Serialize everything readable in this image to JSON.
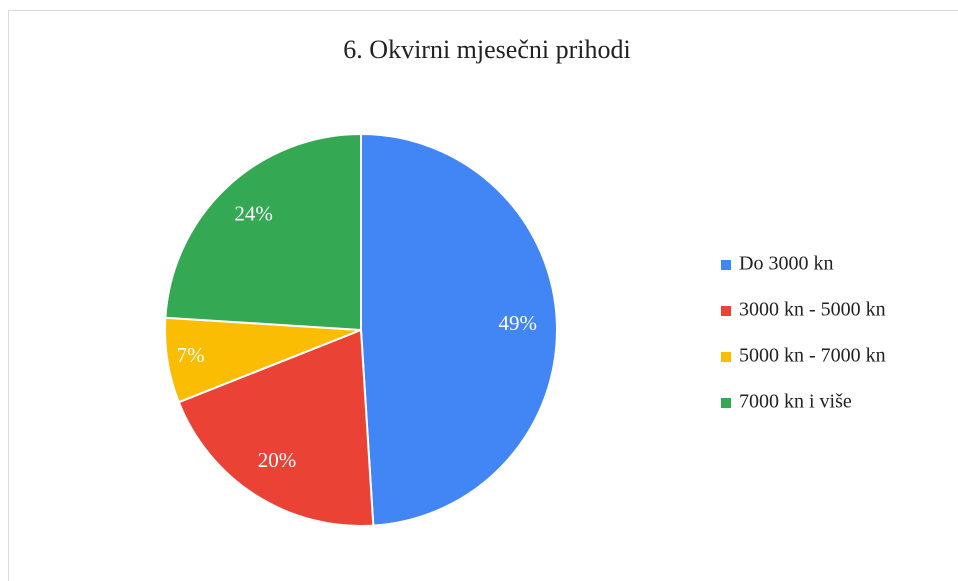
{
  "chart_data": {
    "type": "pie",
    "title": "6. Okvirni mjesečni prihodi",
    "categories": [
      "Do 3000 kn",
      "3000 kn - 5000 kn",
      "5000 kn - 7000 kn",
      "7000 kn i više"
    ],
    "values": [
      49,
      20,
      7,
      24
    ],
    "value_labels": [
      "49%",
      "20%",
      "7%",
      "24%"
    ],
    "colors": [
      "#4285f4",
      "#ea4335",
      "#fbbc04",
      "#34a853"
    ],
    "legend": "right"
  }
}
